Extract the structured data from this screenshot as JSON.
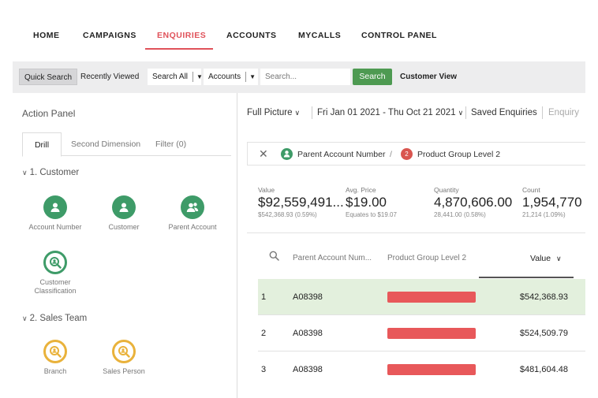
{
  "nav": {
    "items": [
      {
        "label": "HOME",
        "active": false
      },
      {
        "label": "CAMPAIGNS",
        "active": false
      },
      {
        "label": "ENQUIRIES",
        "active": true
      },
      {
        "label": "ACCOUNTS",
        "active": false
      },
      {
        "label": "MYCALLS",
        "active": false
      },
      {
        "label": "CONTROL PANEL",
        "active": false
      }
    ]
  },
  "toolbar": {
    "quick_search": "Quick Search",
    "recently_viewed": "Recently Viewed",
    "search_all": "Search All",
    "accounts": "Accounts",
    "search_placeholder": "Search...",
    "search_button": "Search",
    "customer_view": "Customer View"
  },
  "action_panel": {
    "title": "Action Panel",
    "tabs": [
      "Drill",
      "Second Dimension",
      "Filter (0)"
    ],
    "active_tab": "Drill",
    "sections": [
      {
        "title": "1. Customer",
        "items": [
          "Account Number",
          "Customer",
          "Parent Account",
          "Customer Classification"
        ]
      },
      {
        "title": "2. Sales Team",
        "items": [
          "Branch",
          "Sales Person"
        ]
      }
    ]
  },
  "filters": {
    "view": "Full Picture",
    "date_range": "Fri Jan 01 2021 - Thu Oct 21 2021",
    "saved": "Saved Enquiries",
    "enquiry": "Enquiry"
  },
  "breadcrumb": {
    "items": [
      "Parent Account Number",
      "Product Group Level 2"
    ],
    "badge": "2"
  },
  "metrics": [
    {
      "label": "Value",
      "value": "$92,559,491...",
      "sub": "$542,368.93 (0.59%)"
    },
    {
      "label": "Avg. Price",
      "value": "$19.00",
      "sub": "Equates to $19.07"
    },
    {
      "label": "Quantity",
      "value": "4,870,606.00",
      "sub": "28,441.00 (0.58%)"
    },
    {
      "label": "Count",
      "value": "1,954,770",
      "sub": "21,214 (1.09%)"
    }
  ],
  "table": {
    "columns": [
      "Parent Account Num...",
      "Product Group Level 2",
      "Value"
    ],
    "rows": [
      {
        "rank": "1",
        "account": "A08398",
        "value": "$542,368.93"
      },
      {
        "rank": "2",
        "account": "A08398",
        "value": "$524,509.79"
      },
      {
        "rank": "3",
        "account": "A08398",
        "value": "$481,604.48"
      }
    ]
  },
  "colors": {
    "accent_red": "#e0525a",
    "green": "#3e9b68",
    "yellow": "#e9b23b",
    "search_green": "#4e9a52",
    "highlight_row": "#e3f0dd"
  }
}
